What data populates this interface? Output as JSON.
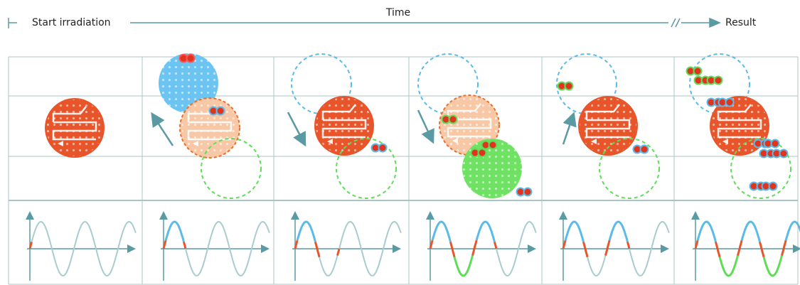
{
  "header": {
    "start": "Start irradiation",
    "time": "Time",
    "result": "Result"
  }
}
